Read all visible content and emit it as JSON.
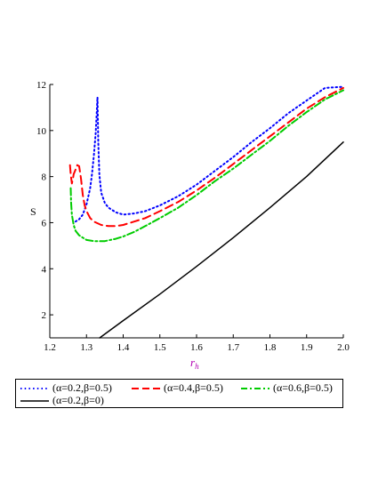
{
  "chart_data": {
    "type": "line",
    "title": "",
    "xlabel": "r",
    "xlabel_subscript": "h",
    "ylabel": "S",
    "xlim": [
      1.2,
      2.0
    ],
    "ylim": [
      1.0,
      12.0
    ],
    "xticks": [
      "1.2",
      "1.3",
      "1.4",
      "1.5",
      "1.6",
      "1.7",
      "1.8",
      "1.9",
      "2.0"
    ],
    "yticks": [
      "2",
      "4",
      "6",
      "8",
      "10",
      "12"
    ],
    "legend_position": "bottom",
    "grid": false,
    "series": [
      {
        "name": "(α=0.2,β=0.5)",
        "color": "#0000ff",
        "style": "dotted",
        "x": [
          1.27,
          1.28,
          1.29,
          1.3,
          1.31,
          1.315,
          1.32,
          1.325,
          1.33,
          1.33,
          1.332,
          1.335,
          1.34,
          1.35,
          1.36,
          1.38,
          1.4,
          1.43,
          1.46,
          1.5,
          1.55,
          1.6,
          1.65,
          1.7,
          1.75,
          1.8,
          1.85,
          1.9,
          1.95,
          2.0
        ],
        "y": [
          6.05,
          6.15,
          6.35,
          6.8,
          7.5,
          8.1,
          8.9,
          9.9,
          11.45,
          11.45,
          9.5,
          8.1,
          7.3,
          6.85,
          6.65,
          6.45,
          6.35,
          6.4,
          6.5,
          6.75,
          7.15,
          7.65,
          8.25,
          8.85,
          9.5,
          10.1,
          10.75,
          11.3,
          11.85,
          11.9
        ]
      },
      {
        "name": "(α=0.4,β=0.5)",
        "color": "#ff0000",
        "style": "dashed",
        "x": [
          1.255,
          1.257,
          1.26,
          1.263,
          1.265,
          1.27,
          1.275,
          1.28,
          1.285,
          1.29,
          1.295,
          1.3,
          1.31,
          1.32,
          1.34,
          1.36,
          1.38,
          1.4,
          1.43,
          1.46,
          1.5,
          1.55,
          1.6,
          1.65,
          1.7,
          1.75,
          1.8,
          1.85,
          1.9,
          1.95,
          2.0
        ],
        "y": [
          8.5,
          8.1,
          7.7,
          7.9,
          8.1,
          8.3,
          8.5,
          8.45,
          7.9,
          7.2,
          6.75,
          6.5,
          6.2,
          6.05,
          5.9,
          5.85,
          5.85,
          5.9,
          6.05,
          6.2,
          6.5,
          6.9,
          7.4,
          7.95,
          8.55,
          9.15,
          9.75,
          10.35,
          10.95,
          11.45,
          11.85
        ]
      },
      {
        "name": "(α=0.6,β=0.5)",
        "color": "#00cc00",
        "style": "dashdot",
        "x": [
          1.257,
          1.258,
          1.26,
          1.265,
          1.27,
          1.28,
          1.29,
          1.3,
          1.32,
          1.35,
          1.38,
          1.4,
          1.43,
          1.46,
          1.5,
          1.55,
          1.6,
          1.65,
          1.7,
          1.75,
          1.8,
          1.85,
          1.9,
          1.95,
          2.0
        ],
        "y": [
          7.5,
          6.9,
          6.35,
          5.9,
          5.65,
          5.45,
          5.35,
          5.25,
          5.2,
          5.2,
          5.3,
          5.4,
          5.6,
          5.85,
          6.2,
          6.65,
          7.2,
          7.8,
          8.35,
          8.95,
          9.55,
          10.2,
          10.8,
          11.35,
          11.75
        ]
      },
      {
        "name": "(α=0.2,β=0)",
        "color": "#000000",
        "style": "solid",
        "x": [
          1.336,
          1.4,
          1.5,
          1.6,
          1.7,
          1.8,
          1.9,
          2.0
        ],
        "y": [
          1.0,
          1.75,
          2.9,
          4.1,
          5.35,
          6.65,
          8.0,
          9.5
        ]
      }
    ]
  }
}
